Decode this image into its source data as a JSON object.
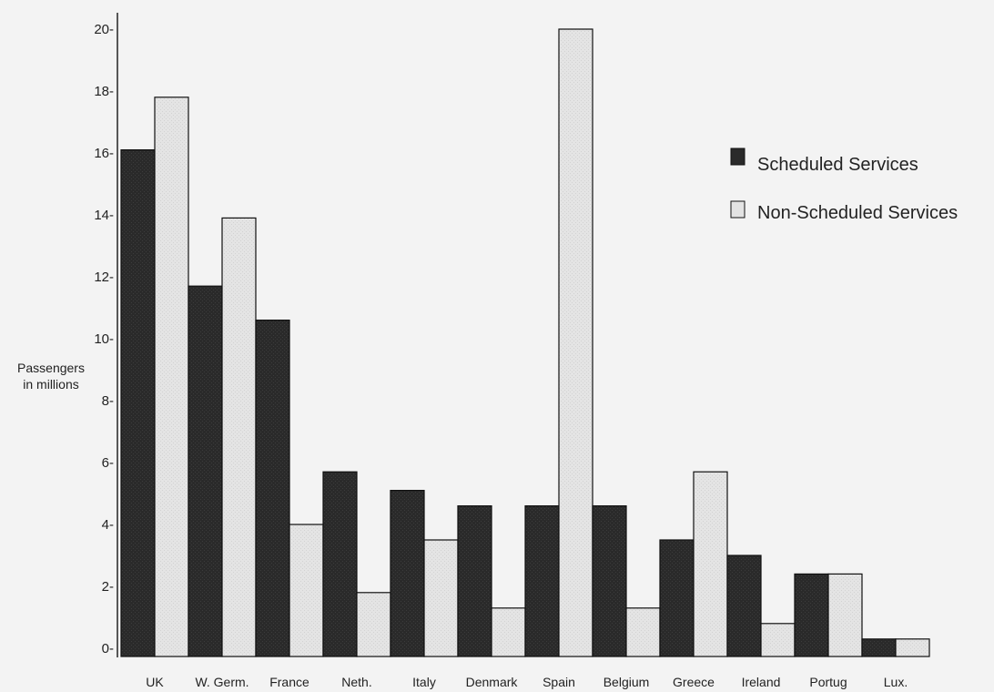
{
  "chart_data": {
    "type": "bar",
    "title": "",
    "xlabel": "",
    "ylabel": [
      "Passengers",
      "in millions"
    ],
    "ylim": [
      0,
      20
    ],
    "yticks": [
      "0-",
      "2-",
      "4-",
      "6-",
      "8-",
      "10-",
      "12-",
      "14-",
      "16-",
      "18-",
      "20-"
    ],
    "grid": false,
    "legend_position": "top-right",
    "categories": [
      "UK",
      "W. Germ.",
      "France",
      "Neth.",
      "Italy",
      "Denmark",
      "Spain",
      "Belgium",
      "Greece",
      "Ireland",
      "Portug",
      "Lux."
    ],
    "series": [
      {
        "name": "Scheduled Services",
        "color": "#2a2a2a",
        "values": [
          16.1,
          11.7,
          10.6,
          5.7,
          5.1,
          4.6,
          4.6,
          4.6,
          3.5,
          3.0,
          2.4,
          0.3
        ]
      },
      {
        "name": "Non-Scheduled Services",
        "color": "#e3e3e3",
        "values": [
          17.8,
          13.9,
          4.0,
          1.8,
          3.5,
          1.3,
          20.0,
          1.3,
          5.7,
          0.8,
          2.4,
          0.3
        ]
      }
    ]
  }
}
